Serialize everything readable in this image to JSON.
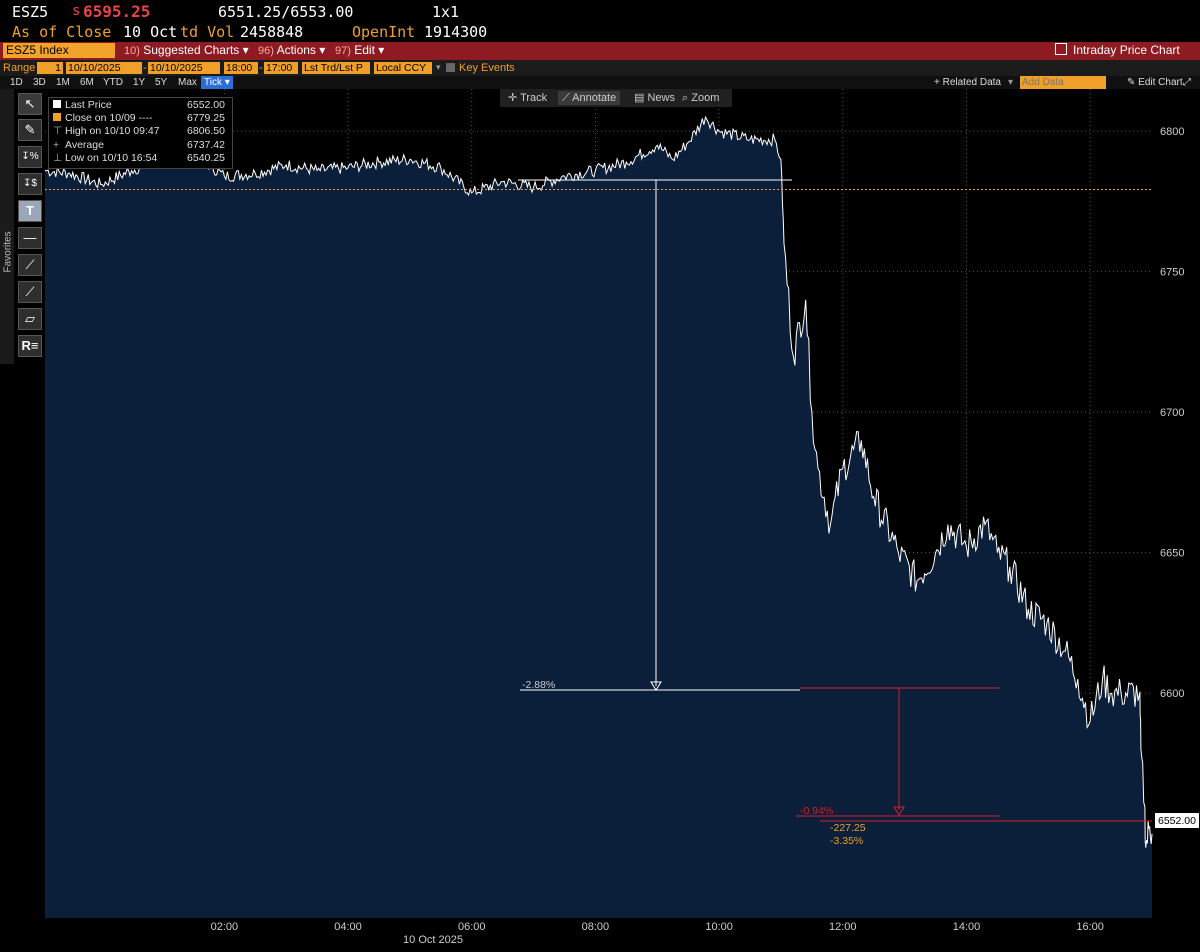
{
  "header": {
    "ticker": "ESZ5",
    "price_prefix": "s",
    "price": "6595.25",
    "bid_ask": "6551.25/6553.00",
    "size": "1x1",
    "as_of": "As of Close",
    "date": "10 Oct",
    "vol_label": "td Vol",
    "vol": "2458848",
    "oi_label": "OpenInt",
    "oi": "1914300"
  },
  "toolbar": {
    "security": "ESZ5 Index",
    "suggested_num": "10)",
    "suggested": "Suggested Charts",
    "actions_num": "96)",
    "actions": "Actions",
    "edit_num": "97)",
    "edit": "Edit",
    "title": "Intraday Price Chart"
  },
  "range": {
    "label": "Range",
    "n": "1",
    "start": "10/10/2025",
    "end": "10/10/2025",
    "t_start": "18:00",
    "t_end": "17:00",
    "mode": "Lst Trd/Lst P",
    "ccy": "Local CCY",
    "key_events": "Key Events"
  },
  "periods": [
    "1D",
    "3D",
    "1M",
    "6M",
    "YTD",
    "1Y",
    "5Y",
    "Max"
  ],
  "period_selected": "Tick",
  "right_tools": {
    "related": "+ Related Data",
    "add_placeholder": "Add Data",
    "edit_chart": "Edit Chart"
  },
  "favorites_label": "Favorites",
  "legend": {
    "last_label": "Last Price",
    "last": "6552.00",
    "close_label": "Close on 10/09 ----",
    "close": "6779.25",
    "high_label": "High on 10/10 09:47",
    "high": "6806.50",
    "avg_label": "Average",
    "avg": "6737.42",
    "low_label": "Low on 10/10 16:54",
    "low": "6540.25"
  },
  "annotate_bar": {
    "track": "Track",
    "annotate": "Annotate",
    "news": "News",
    "zoom": "Zoom"
  },
  "annotations": {
    "drop1": "-2.88%",
    "drop2": "-0.94%",
    "net_change": "-227.25",
    "net_pct": "-3.35%",
    "last_tag": "6552.00"
  },
  "colors": {
    "red_bar": "#8e1a22",
    "orange": "#f0a028",
    "area": "#0c1f3d",
    "annot_red": "#d0202a"
  },
  "chart_data": {
    "type": "area",
    "title": "",
    "date_label": "10 Oct 2025",
    "x_ticks": [
      "02:00",
      "04:00",
      "06:00",
      "08:00",
      "10:00",
      "12:00",
      "14:00",
      "16:00"
    ],
    "y_ticks": [
      6600,
      6650,
      6700,
      6750,
      6800
    ],
    "ylim": [
      6520,
      6815
    ],
    "xlim_hours": [
      -0.9,
      17.0
    ],
    "prev_close": 6779.25,
    "last": 6552.0,
    "series": [
      {
        "name": "Last Price",
        "x": [
          -0.9,
          -0.5,
          0,
          0.5,
          1,
          1.5,
          2,
          2.5,
          3,
          3.5,
          4,
          4.5,
          5,
          5.5,
          6,
          6.5,
          7,
          7.5,
          8,
          8.5,
          9,
          9.25,
          9.5,
          9.78,
          10,
          10.5,
          10.9,
          11.0,
          11.05,
          11.2,
          11.4,
          11.5,
          11.6,
          11.8,
          12.0,
          12.3,
          12.5,
          12.9,
          13.2,
          13.5,
          13.7,
          14.0,
          14.3,
          14.5,
          14.7,
          15.0,
          15.3,
          15.6,
          15.8,
          16.0,
          16.2,
          16.35,
          16.5,
          16.8,
          16.82,
          16.88,
          16.9,
          16.95,
          17.0
        ],
        "y": [
          6786,
          6785,
          6781,
          6786,
          6790,
          6792,
          6784,
          6785,
          6788,
          6786,
          6787,
          6789,
          6790,
          6787,
          6778,
          6782,
          6780,
          6784,
          6786,
          6789,
          6795,
          6790,
          6796,
          6805,
          6800,
          6797,
          6797,
          6790,
          6760,
          6720,
          6740,
          6700,
          6680,
          6660,
          6680,
          6690,
          6670,
          6650,
          6640,
          6650,
          6660,
          6652,
          6660,
          6650,
          6645,
          6630,
          6625,
          6615,
          6605,
          6590,
          6605,
          6600,
          6600,
          6600,
          6580,
          6560,
          6545,
          6552,
          6550
        ]
      }
    ]
  }
}
